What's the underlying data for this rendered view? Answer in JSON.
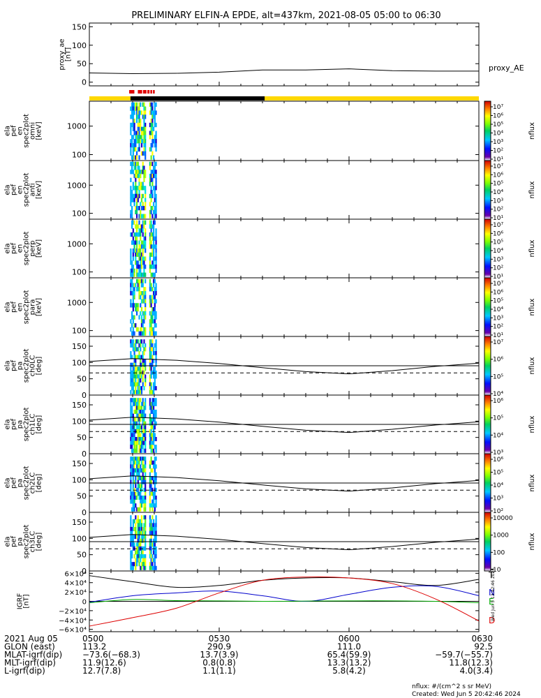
{
  "title": "PRELIMINARY ELFIN-A EPDE, alt=437km, 2021-08-05 05:00 to 06:30",
  "colors": {
    "bar_yellow": "#ffd800",
    "bar_black": "#000000",
    "bar_red": "#e00000",
    "igrf_n": "#0000cc",
    "igrf_e": "#00aa00",
    "igrf_d": "#dd0000",
    "igrf_t": "#000000"
  },
  "time_axis": {
    "start_label": "2021 Aug 05",
    "tick_labels": [
      "0500",
      "0530",
      "0600",
      "0630"
    ],
    "tick_minutes": [
      0,
      30,
      60,
      90
    ]
  },
  "orbit_bar": {
    "segments": [
      {
        "color": "yellow",
        "from_min": 0,
        "to_min": 40.5
      },
      {
        "color": "black",
        "from_min": 9.5,
        "to_min": 40.5
      },
      {
        "color": "yellow",
        "from_min": 40.5,
        "to_min": 90
      }
    ],
    "red_marks_min": [
      [
        9.2,
        10.4
      ],
      [
        11.2,
        12.2
      ],
      [
        12.4,
        13.2
      ],
      [
        13.4,
        13.9
      ],
      [
        14.1,
        14.5
      ],
      [
        14.7,
        15.1
      ]
    ]
  },
  "panels": [
    {
      "id": "proxy_ae",
      "ylabel": [
        "proxy_ae",
        "[nT]"
      ],
      "right_label": "proxy_AE",
      "yticks": [
        "150",
        "100",
        "50",
        "0"
      ],
      "ytick_values": [
        150,
        100,
        50,
        0
      ],
      "yrange": [
        -10,
        160
      ]
    },
    {
      "id": "omni",
      "ylabel": [
        "ela",
        "pef",
        "en",
        "spec2plot",
        "omni",
        "[keV]"
      ],
      "yticks": [
        "1000",
        "100"
      ],
      "cbar_labels": [
        "10⁷",
        "10⁶",
        "10⁵",
        "10⁴",
        "10³",
        "10²",
        "10¹"
      ],
      "cbar_unit": "nflux"
    },
    {
      "id": "anti",
      "ylabel": [
        "ela",
        "pef",
        "en",
        "spec2plot",
        "anti",
        "[keV]"
      ],
      "yticks": [
        "1000",
        "100"
      ],
      "cbar_labels": [
        "10⁷",
        "10⁶",
        "10⁵",
        "10⁴",
        "10³",
        "10²",
        "10¹"
      ],
      "cbar_unit": "nflux"
    },
    {
      "id": "perp",
      "ylabel": [
        "ela",
        "pef",
        "en",
        "spec2plot",
        "perp",
        "[keV]"
      ],
      "yticks": [
        "1000",
        "100"
      ],
      "cbar_labels": [
        "10⁷",
        "10⁶",
        "10⁵",
        "10⁴",
        "10³",
        "10²",
        "10¹"
      ],
      "cbar_unit": "nflux"
    },
    {
      "id": "para",
      "ylabel": [
        "ela",
        "pef",
        "en",
        "spec2plot",
        "para",
        "[keV]"
      ],
      "yticks": [
        "1000",
        "100"
      ],
      "cbar_labels": [
        "10⁷",
        "10⁶",
        "10⁵",
        "10⁴",
        "10³",
        "10²",
        "10¹"
      ],
      "cbar_unit": "nflux"
    },
    {
      "id": "ch0LC",
      "ylabel": [
        "ela",
        "pef",
        "pa",
        "spec2plot",
        "ch0LC",
        "[deg]"
      ],
      "yticks": [
        "150",
        "100",
        "50",
        "0"
      ],
      "cbar_labels": [
        "10⁷",
        "10⁶",
        "10⁵",
        "10⁴"
      ],
      "cbar_unit": "nflux"
    },
    {
      "id": "ch1LC",
      "ylabel": [
        "ela",
        "pef",
        "pa",
        "spec2plot",
        "ch1LC",
        "[deg]"
      ],
      "yticks": [
        "150",
        "100",
        "50",
        "0"
      ],
      "cbar_labels": [
        "10⁶",
        "10⁵",
        "10⁴",
        "10³"
      ],
      "cbar_unit": "nflux"
    },
    {
      "id": "ch2LC",
      "ylabel": [
        "ela",
        "pef",
        "pa",
        "spec2plot",
        "ch2LC",
        "[deg]"
      ],
      "yticks": [
        "150",
        "100",
        "50",
        "0"
      ],
      "cbar_labels": [
        "10⁶",
        "10⁵",
        "10⁴",
        "10³",
        "10²"
      ],
      "cbar_unit": "nflux"
    },
    {
      "id": "ch3LC",
      "ylabel": [
        "ela",
        "pef",
        "pa",
        "spec2plot",
        "ch3LC",
        "[deg]"
      ],
      "yticks": [
        "150",
        "100",
        "50",
        "0"
      ],
      "cbar_labels": [
        "10000",
        "1000",
        "100",
        "10"
      ],
      "cbar_unit": "nflux"
    },
    {
      "id": "igrf",
      "ylabel": [
        "IGRF",
        "[nT]"
      ],
      "yticks": [
        "6×10⁴",
        "4×10⁴",
        "2×10⁴",
        "0",
        "−2×10⁴",
        "−4×10⁴",
        "−6×10⁴"
      ],
      "ytick_values": [
        60000,
        40000,
        20000,
        0,
        -20000,
        -40000,
        -60000
      ],
      "legend": [
        "T",
        "N",
        "E",
        "D"
      ]
    }
  ],
  "chart_data": {
    "type": "line",
    "title": "PRELIMINARY ELFIN-A EPDE, alt=437km, 2021-08-05 05:00 to 06:30",
    "x_unit": "minutes after 05:00",
    "xlim": [
      0,
      90
    ],
    "series": [
      {
        "name": "proxy_AE",
        "panel": "proxy_ae",
        "ylim": [
          -10,
          160
        ],
        "x": [
          0,
          10,
          20,
          30,
          40,
          50,
          60,
          70,
          80,
          90
        ],
        "values": [
          25,
          23,
          24,
          27,
          33,
          33,
          36,
          31,
          30,
          30
        ]
      },
      {
        "name": "loss_cone",
        "panel": "pa",
        "ylim": [
          0,
          180
        ],
        "x": [
          0,
          10,
          20,
          30,
          40,
          50,
          60,
          70,
          80,
          90
        ],
        "values": [
          103,
          112,
          107,
          97,
          84,
          72,
          65,
          75,
          88,
          98
        ]
      },
      {
        "name": "IGRF_T",
        "panel": "igrf",
        "ylim": [
          -65000,
          65000
        ],
        "x": [
          0,
          10,
          20,
          30,
          40,
          50,
          60,
          70,
          80,
          90
        ],
        "values": [
          55000,
          42000,
          30000,
          34000,
          45000,
          50000,
          50000,
          42000,
          34000,
          47000
        ]
      },
      {
        "name": "IGRF_N",
        "panel": "igrf",
        "ylim": [
          -65000,
          65000
        ],
        "x": [
          0,
          10,
          20,
          30,
          40,
          50,
          60,
          70,
          80,
          90
        ],
        "values": [
          -2000,
          12000,
          18000,
          22000,
          12000,
          0,
          15000,
          30000,
          32000,
          12000
        ]
      },
      {
        "name": "IGRF_E",
        "panel": "igrf",
        "ylim": [
          -65000,
          65000
        ],
        "x": [
          0,
          10,
          20,
          30,
          40,
          50,
          60,
          70,
          80,
          90
        ],
        "values": [
          -3000,
          4000,
          1500,
          1000,
          0,
          500,
          1000,
          1000,
          0,
          -3000
        ]
      },
      {
        "name": "IGRF_D",
        "panel": "igrf",
        "ylim": [
          -65000,
          65000
        ],
        "x": [
          0,
          10,
          20,
          30,
          40,
          50,
          60,
          70,
          80,
          90
        ],
        "values": [
          -53000,
          -35000,
          -15000,
          18000,
          45000,
          52000,
          50000,
          38000,
          5000,
          -42000
        ]
      }
    ]
  },
  "ephemeris": {
    "rows": [
      {
        "label": "2021 Aug 05",
        "values": [
          "0500",
          "0530",
          "0600",
          "0630"
        ]
      },
      {
        "label": "GLON (east)",
        "values": [
          "113.2",
          "290.9",
          "111.0",
          "92.5"
        ]
      },
      {
        "label": "MLAT-igrf(dip)",
        "values": [
          "−73.6(−68.3)",
          "13.7(3.9)",
          "65.4(59.9)",
          "−59.7(−55.7)"
        ]
      },
      {
        "label": "MLT-igrf(dip)",
        "values": [
          "11.9(12.6)",
          "0.8(0.8)",
          "13.3(13.2)",
          "11.8(12.3)"
        ]
      },
      {
        "label": "L-igrf(dip)",
        "values": [
          "12.7(7.8)",
          "1.1(1.1)",
          "5.8(4.2)",
          "4.0(3.4)"
        ]
      }
    ]
  },
  "footer": {
    "units": "nflux: #/(cm^2 s sr MeV)",
    "created": "Created: Wed Jun  5 20:42:46 2024",
    "side_stamp": "Wed Jun  5 13:42:46 2024"
  }
}
